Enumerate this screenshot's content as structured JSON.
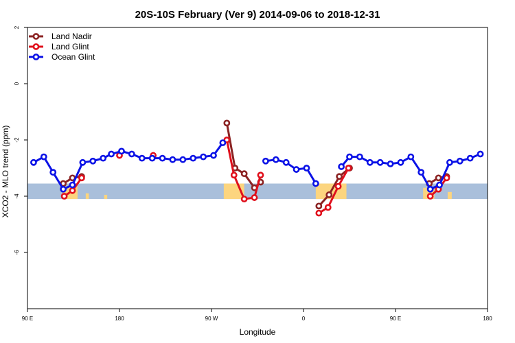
{
  "chart_data": {
    "type": "line",
    "title": "20S-10S February (Ver 9)   2014-09-06 to 2018-12-31",
    "xlabel": "Longitude",
    "ylabel": "XCO2 - MLO trend (ppm)",
    "xlim": [
      90,
      540
    ],
    "ylim": [
      -8,
      2
    ],
    "yticks": [
      2,
      0,
      -2,
      -4,
      -6
    ],
    "xticks": [
      {
        "value": 90,
        "label": "90 E"
      },
      {
        "value": 180,
        "label": "180"
      },
      {
        "value": 270,
        "label": "90 W"
      },
      {
        "value": 360,
        "label": "0"
      },
      {
        "value": 450,
        "label": "90 E"
      },
      {
        "value": 540,
        "label": "180"
      }
    ],
    "grid": false,
    "legend_position": "top-left",
    "band": {
      "y_range": [
        -4.1,
        -3.55
      ],
      "color": "#a9bfdb"
    },
    "land_color": "#fcd57f",
    "land_segments": [
      {
        "x_range": [
          124,
          139
        ],
        "y_range": [
          -4.1,
          -3.65
        ]
      },
      {
        "x_range": [
          147,
          150
        ],
        "y_range": [
          -4.1,
          -3.9
        ]
      },
      {
        "x_range": [
          165,
          168
        ],
        "y_range": [
          -4.1,
          -3.95
        ]
      },
      {
        "x_range": [
          282,
          302
        ],
        "y_range": [
          -4.1,
          -3.55
        ]
      },
      {
        "x_range": [
          372,
          402
        ],
        "y_range": [
          -4.1,
          -3.55
        ]
      },
      {
        "x_range": [
          477,
          488
        ],
        "y_range": [
          -4.1,
          -3.7
        ]
      },
      {
        "x_range": [
          501,
          505
        ],
        "y_range": [
          -4.1,
          -3.85
        ]
      }
    ],
    "series": [
      {
        "name": "Land Nadir",
        "color": "#8b2323",
        "segments": [
          [
            [
              125,
              -3.55
            ],
            [
              134,
              -3.35
            ],
            [
              143,
              -3.3
            ]
          ],
          [
            [
              285,
              -1.4
            ],
            [
              293,
              -3.0
            ],
            [
              302,
              -3.2
            ],
            [
              312,
              -3.7
            ],
            [
              318,
              -3.5
            ]
          ],
          [
            [
              375,
              -4.35
            ],
            [
              385,
              -3.95
            ],
            [
              395,
              -3.3
            ],
            [
              405,
              -3.0
            ]
          ],
          [
            [
              483,
              -3.55
            ],
            [
              492,
              -3.35
            ],
            [
              500,
              -3.3
            ]
          ]
        ]
      },
      {
        "name": "Land Glint",
        "color": "#e0101c",
        "segments": [
          [
            [
              126,
              -4.0
            ],
            [
              134,
              -3.8
            ],
            [
              143,
              -3.35
            ]
          ],
          [
            [
              180,
              -2.55
            ]
          ],
          [
            [
              213,
              -2.55
            ]
          ],
          [
            [
              285,
              -2.0
            ],
            [
              292,
              -3.25
            ],
            [
              302,
              -4.1
            ],
            [
              312,
              -4.05
            ],
            [
              318,
              -3.25
            ]
          ],
          [
            [
              375,
              -4.6
            ],
            [
              384,
              -4.4
            ],
            [
              394,
              -3.65
            ],
            [
              404,
              -3.0
            ]
          ],
          [
            [
              484,
              -4.0
            ],
            [
              492,
              -3.75
            ],
            [
              500,
              -3.35
            ]
          ]
        ]
      },
      {
        "name": "Ocean Glint",
        "color": "#0b12e6",
        "segments": [
          [
            [
              96,
              -2.8
            ],
            [
              106,
              -2.6
            ],
            [
              115,
              -3.15
            ],
            [
              125,
              -3.75
            ],
            [
              134,
              -3.6
            ],
            [
              144,
              -2.8
            ],
            [
              154,
              -2.75
            ],
            [
              164,
              -2.65
            ],
            [
              172,
              -2.5
            ],
            [
              182,
              -2.4
            ],
            [
              192,
              -2.5
            ],
            [
              202,
              -2.65
            ],
            [
              212,
              -2.65
            ],
            [
              222,
              -2.65
            ],
            [
              232,
              -2.7
            ],
            [
              242,
              -2.7
            ],
            [
              252,
              -2.65
            ],
            [
              262,
              -2.6
            ],
            [
              272,
              -2.55
            ],
            [
              281,
              -2.1
            ]
          ],
          [
            [
              323,
              -2.75
            ],
            [
              333,
              -2.7
            ],
            [
              343,
              -2.8
            ],
            [
              353,
              -3.05
            ],
            [
              363,
              -3.0
            ],
            [
              372,
              -3.55
            ]
          ],
          [
            [
              397,
              -2.95
            ],
            [
              405,
              -2.6
            ],
            [
              415,
              -2.6
            ],
            [
              425,
              -2.8
            ],
            [
              435,
              -2.8
            ],
            [
              445,
              -2.85
            ],
            [
              455,
              -2.8
            ],
            [
              465,
              -2.6
            ],
            [
              475,
              -3.15
            ],
            [
              484,
              -3.75
            ],
            [
              493,
              -3.6
            ],
            [
              503,
              -2.8
            ],
            [
              513,
              -2.75
            ],
            [
              523,
              -2.65
            ],
            [
              533,
              -2.5
            ]
          ]
        ]
      }
    ]
  }
}
